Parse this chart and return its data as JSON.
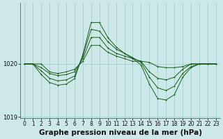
{
  "title": "Graphe pression niveau de la mer (hPa)",
  "background_color": "#cce8e8",
  "grid_color": "#99cccc",
  "line_color": "#1a5c1a",
  "hours": [
    0,
    1,
    2,
    3,
    4,
    5,
    6,
    7,
    8,
    9,
    10,
    11,
    12,
    13,
    14,
    15,
    16,
    17,
    18,
    19,
    20,
    21,
    22,
    23
  ],
  "series1": [
    1020.0,
    1020.0,
    1020.0,
    1019.85,
    1019.82,
    1019.85,
    1019.9,
    1020.05,
    1020.35,
    1020.35,
    1020.22,
    1020.15,
    1020.1,
    1020.05,
    1020.05,
    1020.03,
    1019.95,
    1019.93,
    1019.93,
    1019.95,
    1020.0,
    1020.0,
    1020.0,
    1020.0
  ],
  "series2": [
    1020.0,
    1020.0,
    1019.93,
    1019.82,
    1019.78,
    1019.8,
    1019.85,
    1020.1,
    1020.5,
    1020.5,
    1020.3,
    1020.2,
    1020.15,
    1020.1,
    1020.05,
    1019.85,
    1019.73,
    1019.7,
    1019.75,
    1019.9,
    1020.0,
    1020.0,
    1020.0,
    1020.0
  ],
  "series3": [
    1020.0,
    1020.0,
    1019.87,
    1019.73,
    1019.68,
    1019.7,
    1019.77,
    1020.15,
    1020.65,
    1020.62,
    1020.42,
    1020.28,
    1020.2,
    1020.12,
    1020.03,
    1019.75,
    1019.55,
    1019.5,
    1019.58,
    1019.82,
    1019.95,
    1020.0,
    1020.0,
    1020.0
  ],
  "series4": [
    1020.0,
    1020.0,
    1019.8,
    1019.65,
    1019.6,
    1019.62,
    1019.72,
    1020.18,
    1020.78,
    1020.78,
    1020.5,
    1020.32,
    1020.2,
    1020.1,
    1019.98,
    1019.62,
    1019.35,
    1019.32,
    1019.42,
    1019.75,
    1019.93,
    1020.0,
    1020.0,
    1020.0
  ],
  "ylim_min": 1018.98,
  "ylim_max": 1021.15,
  "ytick_vals": [
    1019.0,
    1020.0
  ],
  "ytick_labels": [
    "1019",
    "1020"
  ],
  "title_fontsize": 7.5,
  "tick_fontsize": 5.5,
  "lw": 0.7,
  "ms": 2.0
}
